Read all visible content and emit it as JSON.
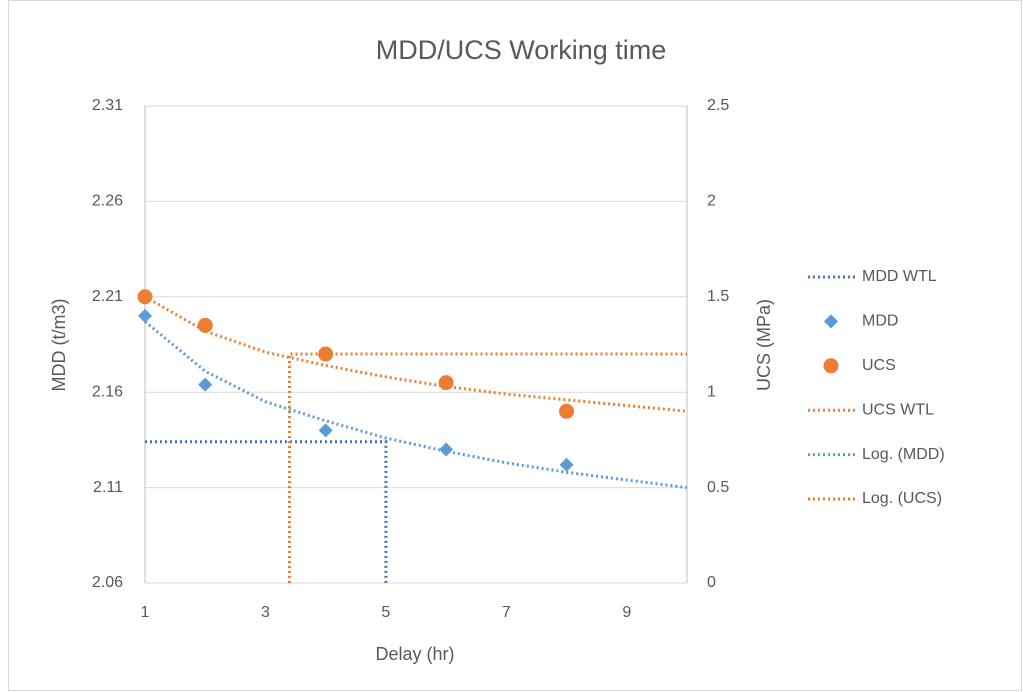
{
  "chart_data": {
    "type": "scatter",
    "title": "MDD/UCS Working time",
    "x_label": "Delay (hr)",
    "y_label": "MDD (t/m3)",
    "y2_label": "UCS (MPa)",
    "xlim": [
      1,
      10
    ],
    "xticks": [
      1,
      3,
      5,
      7,
      9
    ],
    "ylim": [
      2.06,
      2.31
    ],
    "yticks": [
      2.06,
      2.11,
      2.16,
      2.21,
      2.26,
      2.31
    ],
    "y2lim": [
      0,
      2.5
    ],
    "y2ticks": [
      0,
      0.5,
      1,
      1.5,
      2,
      2.5
    ],
    "grid": true,
    "legend": "right",
    "series": [
      {
        "name": "MDD WTL",
        "color": "#4472c4",
        "style": "dotted",
        "x": [
          1,
          5,
          5
        ],
        "values": [
          2.134,
          2.134,
          2.06
        ]
      },
      {
        "name": "MDD",
        "color": "#5b9bd5",
        "style": "diamond",
        "x": [
          1,
          2,
          4,
          6,
          8
        ],
        "values": [
          2.2,
          2.164,
          2.14,
          2.13,
          2.122
        ]
      },
      {
        "name": "UCS",
        "color": "#ed7d31",
        "style": "circle",
        "axis": "y2",
        "x": [
          1,
          2,
          4,
          6,
          8
        ],
        "values": [
          1.5,
          1.35,
          1.2,
          1.05,
          0.9
        ]
      },
      {
        "name": "UCS WTL",
        "color": "#ed7d31",
        "style": "dotted",
        "axis": "y2",
        "x": [
          3.4,
          3.4,
          10
        ],
        "values": [
          0,
          1.2,
          1.2
        ]
      },
      {
        "name": "Log. (MDD)",
        "color": "#5b9bd5",
        "style": "dotted",
        "x": [
          1,
          2,
          3,
          4,
          5,
          6,
          7,
          8,
          9,
          10
        ],
        "values": [
          2.197,
          2.171,
          2.155,
          2.145,
          2.136,
          2.129,
          2.123,
          2.118,
          2.114,
          2.11
        ]
      },
      {
        "name": "Log. (UCS)",
        "color": "#ed7d31",
        "style": "dotted",
        "axis": "y2",
        "x": [
          1,
          2,
          3,
          4,
          5,
          6,
          7,
          8,
          9,
          10
        ],
        "values": [
          1.5,
          1.32,
          1.21,
          1.14,
          1.08,
          1.03,
          0.99,
          0.96,
          0.93,
          0.9
        ]
      }
    ]
  }
}
